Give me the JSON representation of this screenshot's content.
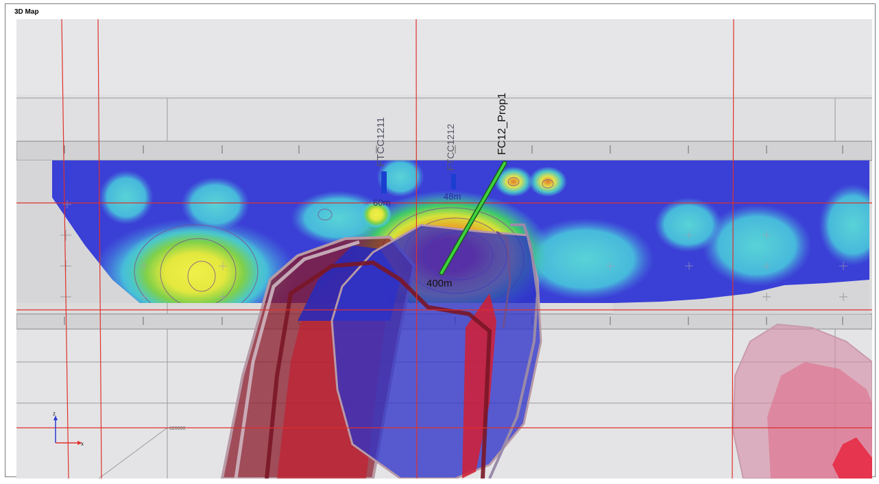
{
  "window": {
    "title": "3D Map"
  },
  "drillholes": [
    {
      "name": "FTCC1211",
      "depth_label": "60m",
      "color": "#1a3fd0"
    },
    {
      "name": "FTCC1212",
      "depth_label": "48m",
      "color": "#1a3fd0"
    },
    {
      "name": "FC12_Prop1",
      "depth_label": "400m",
      "color": "#3ed23e"
    }
  ],
  "axes_triad": {
    "z": "z",
    "x": "x"
  },
  "grid_label": "620000",
  "colors": {
    "background": "#dcdcdc",
    "grid_red": "#e0302a",
    "low": "#3a3fd6",
    "mid": "#43c7d3",
    "high": "#e01e3c"
  }
}
